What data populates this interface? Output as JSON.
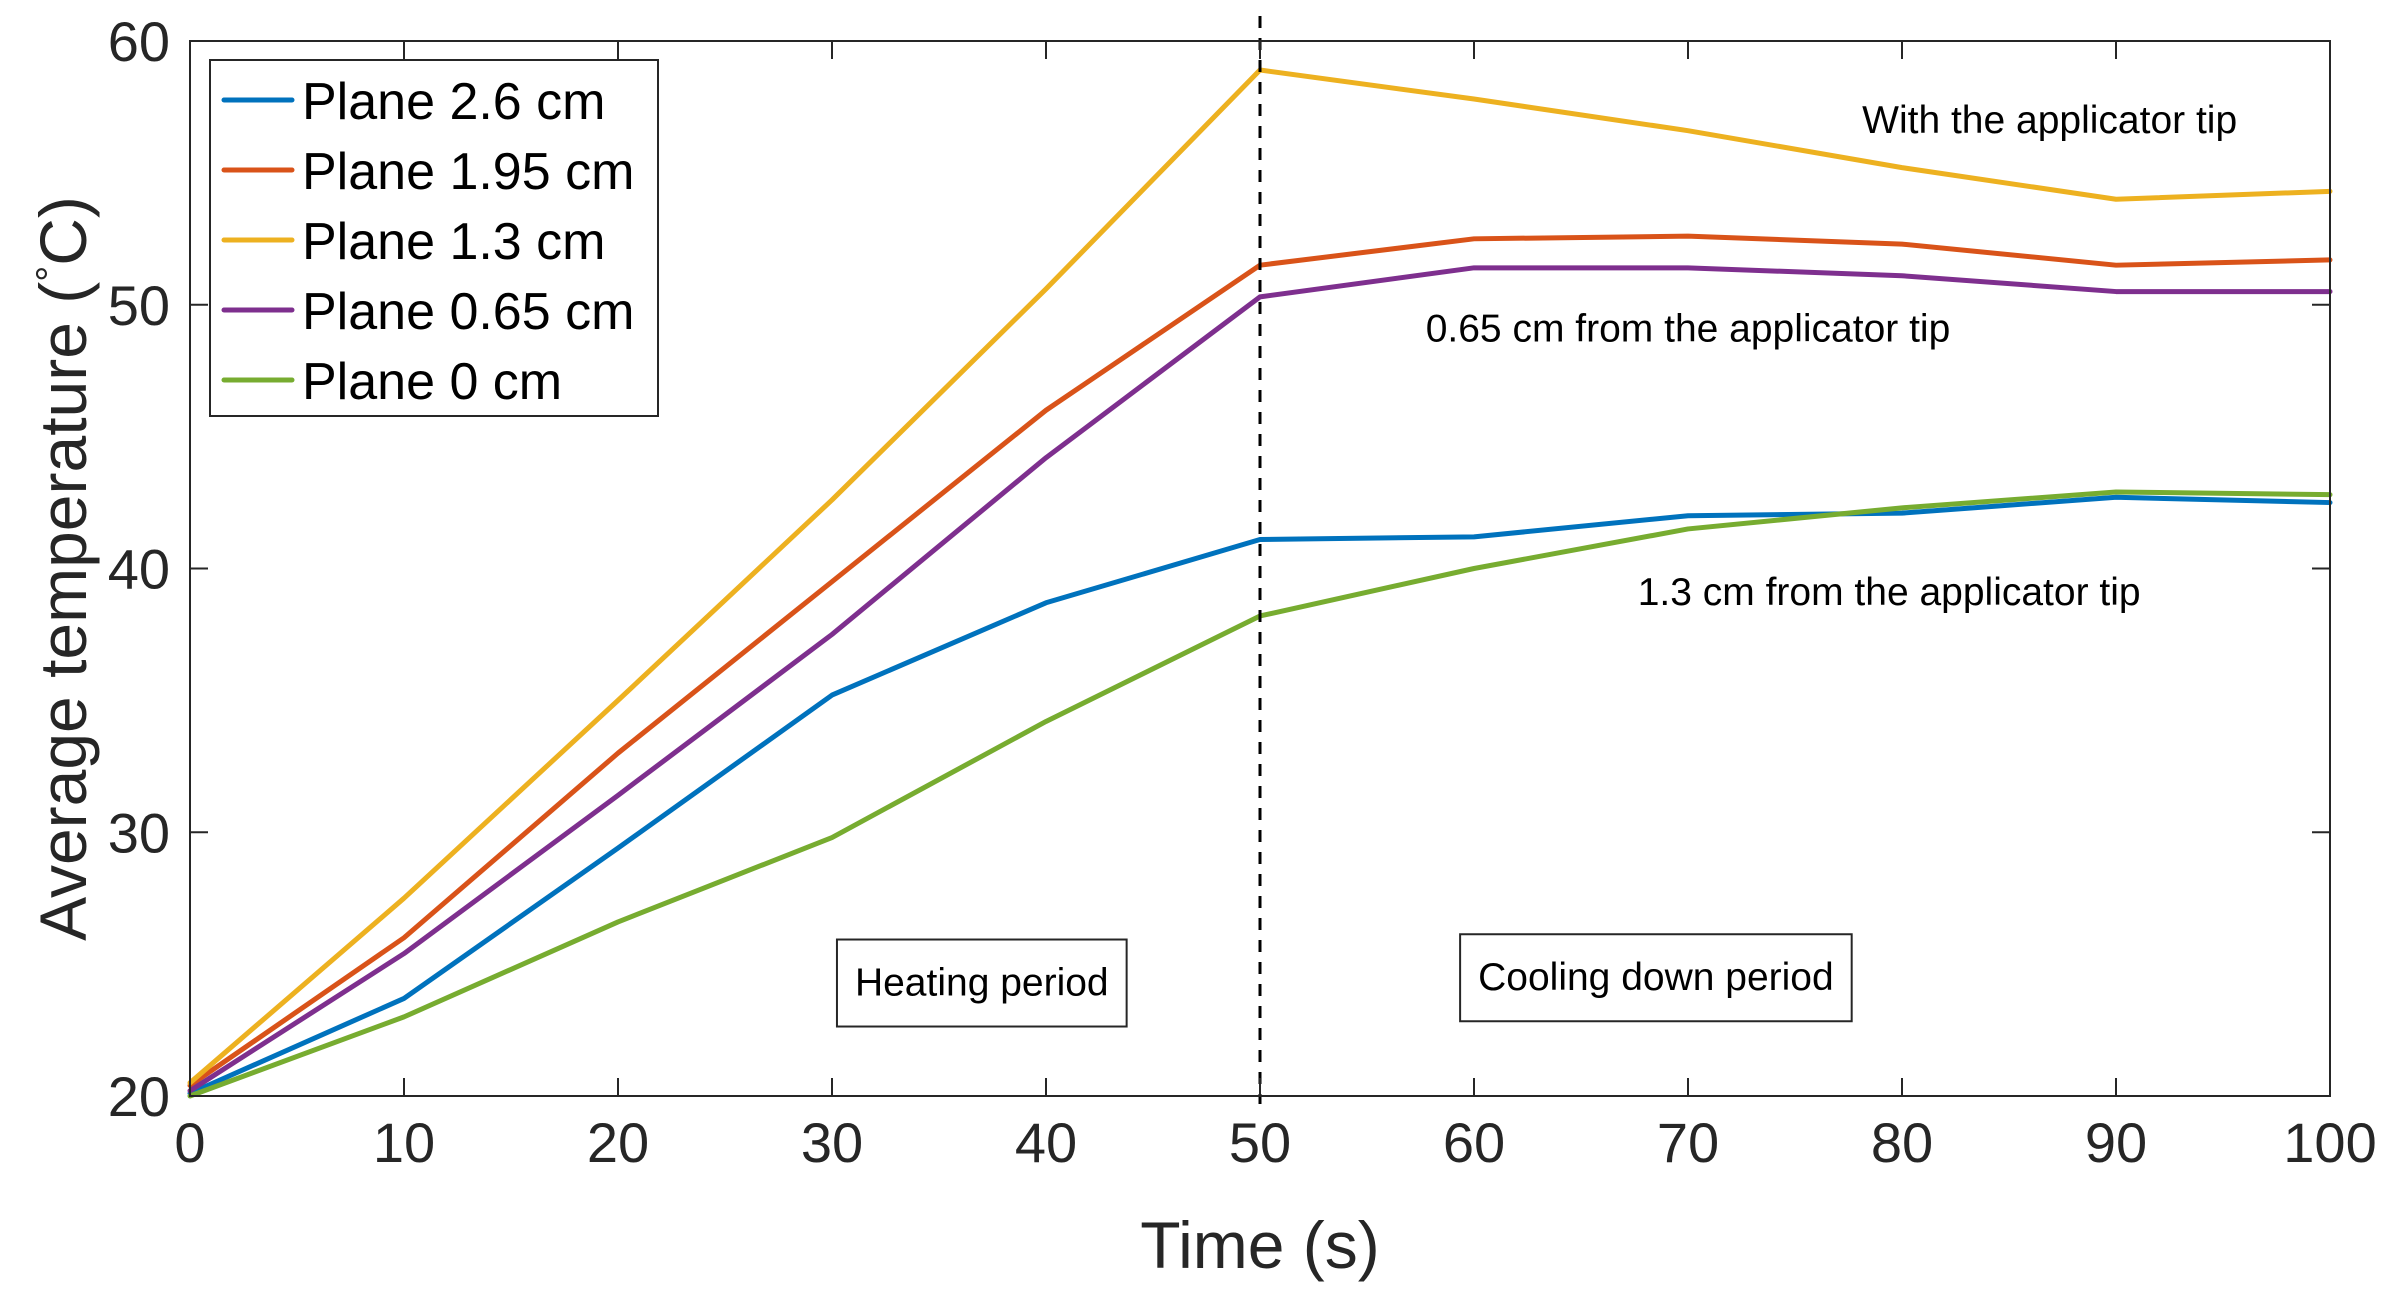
{
  "chart_data": {
    "type": "line",
    "xlabel": "Time (s)",
    "ylabel_main": "Average temperature (",
    "ylabel_degree": "°",
    "ylabel_unit": "C)",
    "xlim": [
      0,
      100
    ],
    "ylim": [
      20,
      60
    ],
    "x": [
      0,
      10,
      20,
      30,
      40,
      50,
      60,
      70,
      80,
      90,
      100
    ],
    "x_ticks": [
      0,
      10,
      20,
      30,
      40,
      50,
      60,
      70,
      80,
      90,
      100
    ],
    "y_ticks": [
      20,
      30,
      40,
      50,
      60
    ],
    "grid": false,
    "legend_position": "top-left",
    "series": [
      {
        "name": "Plane 2.6 cm",
        "color": "#0072BD",
        "values": [
          20.1,
          23.7,
          29.4,
          35.2,
          38.7,
          41.1,
          41.2,
          42.0,
          42.1,
          42.7,
          42.5
        ]
      },
      {
        "name": "Plane 1.95 cm",
        "color": "#D95319",
        "values": [
          20.4,
          26.0,
          33.0,
          39.5,
          46.0,
          51.5,
          52.5,
          52.6,
          52.3,
          51.5,
          51.7
        ]
      },
      {
        "name": "Plane 1.3 cm",
        "color": "#EDB120",
        "values": [
          20.5,
          27.5,
          35.0,
          42.6,
          50.6,
          58.9,
          57.8,
          56.6,
          55.2,
          54.0,
          54.3
        ]
      },
      {
        "name": "Plane 0.65 cm",
        "color": "#7E2F8E",
        "values": [
          20.2,
          25.4,
          31.4,
          37.5,
          44.2,
          50.3,
          51.4,
          51.4,
          51.1,
          50.5,
          50.5
        ]
      },
      {
        "name": "Plane 0 cm",
        "color": "#77AC30",
        "values": [
          20.0,
          23.0,
          26.6,
          29.8,
          34.2,
          38.2,
          40.0,
          41.5,
          42.3,
          42.9,
          42.8
        ]
      }
    ],
    "vertical_line": {
      "x": 50,
      "style": "dashed",
      "color": "#000000"
    },
    "annotations": [
      {
        "id": "with-applicator-tip",
        "text": "With the applicator tip",
        "x": 86.9,
        "y": 56.9,
        "boxed": false
      },
      {
        "id": "065-from-applicator-tip",
        "text": "0.65 cm from the applicator tip",
        "x": 70.0,
        "y": 49.0,
        "boxed": false
      },
      {
        "id": "13-from-applicator-tip",
        "text": "1.3 cm from the applicator tip",
        "x": 79.4,
        "y": 39.0,
        "boxed": false
      },
      {
        "id": "heating-period",
        "text": "Heating period",
        "x": 37.0,
        "y": 24.2,
        "boxed": true
      },
      {
        "id": "cooling-period",
        "text": "Cooling down period",
        "x": 68.5,
        "y": 24.4,
        "boxed": true
      }
    ]
  }
}
